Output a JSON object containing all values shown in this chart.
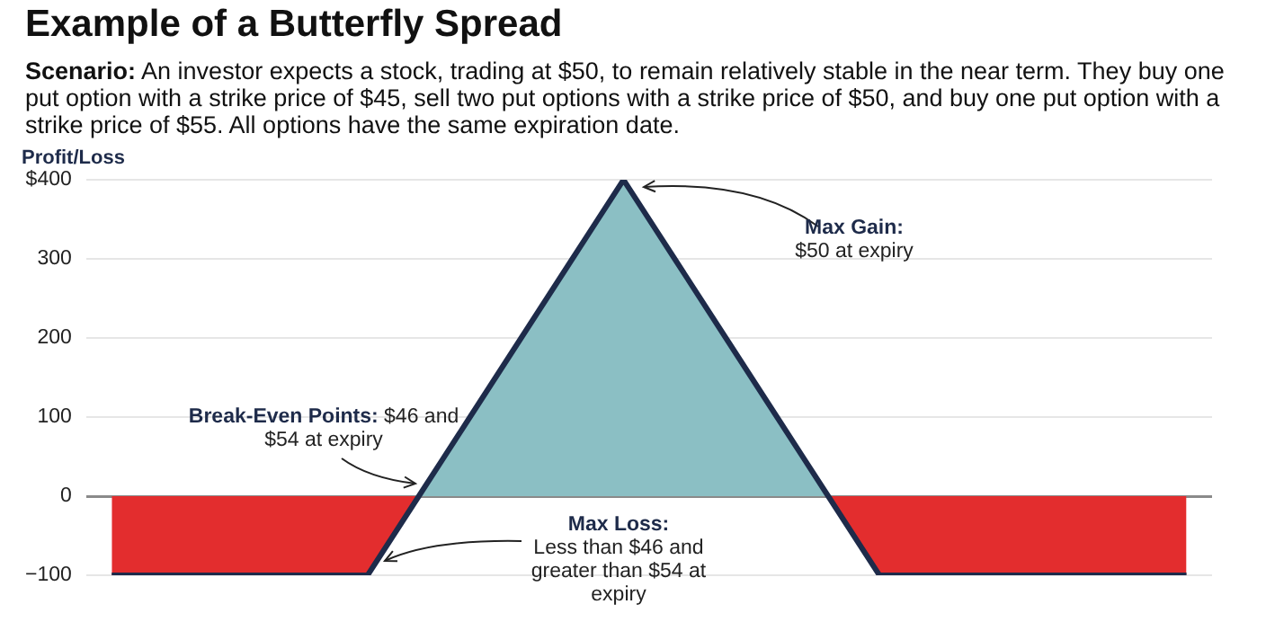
{
  "chart_data": {
    "type": "area",
    "title": "Example of a Butterfly Spread",
    "subtitle": "Scenario: An investor expects a stock, trading at $50, to remain relatively stable in the near term. They buy one put option with a strike price of $45, sell two put options with a strike price of $50, and buy one put option with a strike price of $55. All options have the same expiration date.",
    "ylabel": "Profit/Loss",
    "categories": [
      null,
      null,
      null,
      null,
      null,
      null,
      null,
      null,
      null,
      null,
      null,
      null,
      null,
      null,
      null,
      null,
      null,
      null,
      null,
      null,
      null,
      null
    ],
    "series": [
      {
        "color": "#1e2b4a",
        "values": [
          -100,
          -100,
          -100,
          -100,
          -100,
          -100,
          0,
          100,
          200,
          300,
          400,
          300,
          200,
          100,
          0,
          -100,
          -100,
          -100,
          -100,
          -100,
          -100,
          -100
        ]
      }
    ],
    "colors": [
      "#8bbfc4",
      "#e32d2e"
    ],
    "ylim": [
      -100,
      400
    ],
    "yticks": [
      {
        "value": -100,
        "label": "−100"
      },
      0,
      100,
      200,
      300,
      {
        "value": 400,
        "label": "$400"
      }
    ],
    "grid": "y",
    "legend": false,
    "tick_labels": "y",
    "marker": "none",
    "annotations": [
      "Max Gain: $50 at expiry",
      "Break-Even Points: $46 and $54 at expiry",
      "Max Loss: Less than $46 and greater than $54 at expiry"
    ]
  }
}
